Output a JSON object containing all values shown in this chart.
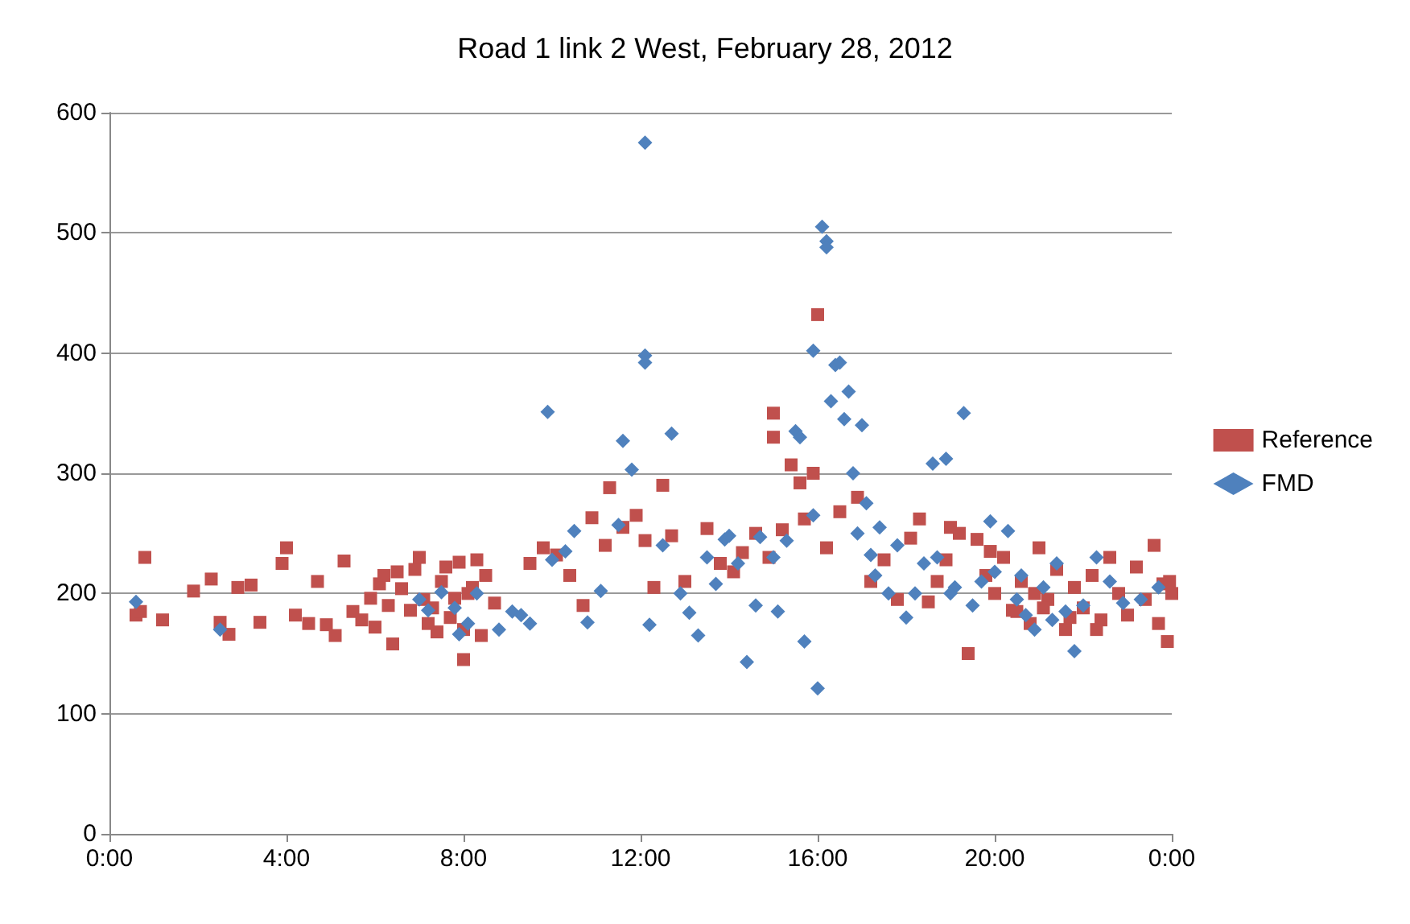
{
  "chart_data": {
    "type": "scatter",
    "title": "Road 1 link 2 West, February 28, 2012",
    "xlim": [
      0,
      24
    ],
    "xticks": [
      {
        "value": 0,
        "label": "0:00"
      },
      {
        "value": 4,
        "label": "4:00"
      },
      {
        "value": 8,
        "label": "8:00"
      },
      {
        "value": 12,
        "label": "12:00"
      },
      {
        "value": 16,
        "label": "16:00"
      },
      {
        "value": 20,
        "label": "20:00"
      },
      {
        "value": 24,
        "label": "0:00"
      }
    ],
    "ylim": [
      0,
      600
    ],
    "yticks": [
      0,
      100,
      200,
      300,
      400,
      500,
      600
    ],
    "grid": "y",
    "legend": "right",
    "series": [
      {
        "name": "Reference",
        "color": "#c0504d",
        "marker": "square",
        "x": [
          0.6,
          0.8,
          0.7,
          1.2,
          1.9,
          2.3,
          2.5,
          2.7,
          2.9,
          3.2,
          3.4,
          3.9,
          4.0,
          4.2,
          4.5,
          4.7,
          4.9,
          5.1,
          5.3,
          5.5,
          5.7,
          5.9,
          6.0,
          6.1,
          6.2,
          6.3,
          6.4,
          6.5,
          6.6,
          6.8,
          6.9,
          7.0,
          7.1,
          7.2,
          7.3,
          7.4,
          7.5,
          7.6,
          7.7,
          7.8,
          7.9,
          8.0,
          8.0,
          8.1,
          8.2,
          8.3,
          8.4,
          8.5,
          8.7,
          9.5,
          9.8,
          10.1,
          10.4,
          10.7,
          10.9,
          11.2,
          11.3,
          11.6,
          11.9,
          12.1,
          12.3,
          12.5,
          12.7,
          13.0,
          13.5,
          13.8,
          14.1,
          14.3,
          14.6,
          14.9,
          15.0,
          15.0,
          15.2,
          15.4,
          15.6,
          15.7,
          15.9,
          16.0,
          16.2,
          16.5,
          16.9,
          17.2,
          17.5,
          17.8,
          18.1,
          18.3,
          18.5,
          18.7,
          18.9,
          19.0,
          19.2,
          19.4,
          19.6,
          19.8,
          20.0,
          20.2,
          20.4,
          20.6,
          20.8,
          21.0,
          21.2,
          21.4,
          21.6,
          21.8,
          22.0,
          22.2,
          22.4,
          22.6,
          22.8,
          23.0,
          23.2,
          23.4,
          23.6,
          23.7,
          23.8,
          23.9,
          24.0,
          23.95,
          21.1,
          20.9,
          20.5,
          19.9,
          21.7,
          22.3
        ],
        "values": [
          182,
          230,
          185,
          178,
          202,
          212,
          176,
          166,
          205,
          207,
          176,
          225,
          238,
          182,
          175,
          210,
          174,
          165,
          227,
          185,
          178,
          196,
          172,
          208,
          215,
          190,
          158,
          218,
          204,
          186,
          220,
          230,
          195,
          175,
          188,
          168,
          210,
          222,
          180,
          196,
          226,
          170,
          145,
          200,
          205,
          228,
          165,
          215,
          192,
          225,
          238,
          232,
          215,
          190,
          263,
          240,
          288,
          255,
          265,
          244,
          205,
          290,
          248,
          210,
          254,
          225,
          218,
          234,
          250,
          230,
          350,
          330,
          253,
          307,
          292,
          262,
          300,
          432,
          238,
          268,
          280,
          210,
          228,
          195,
          246,
          262,
          193,
          210,
          228,
          255,
          250,
          150,
          245,
          215,
          200,
          230,
          186,
          210,
          175,
          238,
          195,
          220,
          170,
          205,
          188,
          215,
          178,
          230,
          200,
          182,
          222,
          195,
          240,
          175,
          208,
          160,
          200,
          210,
          188,
          200,
          185,
          235,
          180,
          170
        ]
      },
      {
        "name": "FMD",
        "color": "#4f81bd",
        "marker": "diamond",
        "x": [
          0.6,
          2.5,
          7.0,
          7.2,
          7.5,
          7.8,
          7.9,
          8.1,
          8.3,
          8.8,
          9.1,
          9.3,
          9.5,
          9.9,
          10.0,
          10.3,
          10.5,
          10.8,
          11.1,
          11.5,
          11.6,
          11.8,
          12.1,
          12.1,
          12.1,
          12.2,
          12.5,
          12.7,
          12.9,
          13.3,
          13.5,
          13.7,
          13.9,
          14.2,
          14.4,
          14.6,
          14.7,
          15.0,
          15.1,
          15.3,
          15.5,
          15.6,
          15.7,
          15.9,
          15.9,
          16.0,
          16.1,
          16.2,
          16.2,
          16.3,
          16.4,
          16.5,
          16.6,
          16.7,
          16.8,
          16.9,
          17.0,
          17.1,
          17.2,
          17.4,
          17.6,
          17.8,
          18.0,
          18.2,
          18.4,
          18.6,
          18.7,
          18.9,
          19.1,
          19.3,
          19.5,
          19.7,
          19.9,
          20.0,
          20.3,
          20.5,
          20.7,
          20.9,
          21.1,
          21.3,
          21.6,
          21.8,
          22.0,
          22.3,
          22.6,
          22.9,
          23.3,
          23.7,
          21.4,
          20.6,
          19.0,
          17.3,
          14.0,
          13.1
        ],
        "values": [
          193,
          170,
          195,
          186,
          201,
          188,
          166,
          175,
          200,
          170,
          185,
          182,
          175,
          351,
          228,
          235,
          252,
          176,
          202,
          257,
          327,
          303,
          575,
          398,
          392,
          174,
          240,
          333,
          200,
          165,
          230,
          208,
          245,
          225,
          143,
          190,
          247,
          230,
          185,
          244,
          335,
          330,
          160,
          265,
          402,
          121,
          505,
          493,
          488,
          360,
          390,
          392,
          345,
          368,
          300,
          250,
          340,
          275,
          232,
          255,
          200,
          240,
          180,
          200,
          225,
          308,
          230,
          312,
          205,
          350,
          190,
          210,
          260,
          218,
          252,
          195,
          182,
          170,
          205,
          178,
          185,
          152,
          190,
          230,
          210,
          192,
          195,
          205,
          225,
          215,
          200,
          215,
          248,
          184
        ]
      }
    ]
  }
}
